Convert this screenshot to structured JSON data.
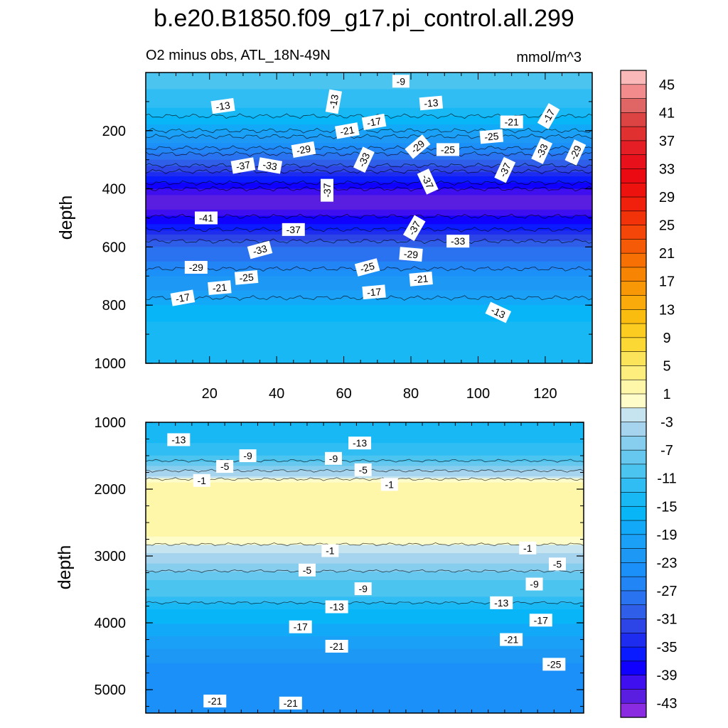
{
  "title": "b.e20.B1850.f09_g17.pi_control.all.299",
  "subtitle_left": "O2 minus obs, ATL_18N-49N",
  "subtitle_right": "mmol/m^3",
  "colorbar": {
    "levels": [
      -45,
      -43,
      -41,
      -39,
      -37,
      -35,
      -33,
      -31,
      -29,
      -27,
      -25,
      -23,
      -21,
      -19,
      -17,
      -15,
      -13,
      -11,
      -9,
      -7,
      -5,
      -3,
      -1,
      1,
      3,
      5,
      7,
      9,
      11,
      13,
      15,
      17,
      19,
      21,
      23,
      25,
      27,
      29,
      31,
      33,
      35,
      37,
      39,
      41,
      43,
      45
    ],
    "colors": [
      "#8a2be2",
      "#5a1ee0",
      "#3f0ff0",
      "#1000ff",
      "#0a1cff",
      "#1e2cf0",
      "#2d45e6",
      "#2f5fe8",
      "#2a73f0",
      "#2285f5",
      "#1a90f8",
      "#1e98f5",
      "#1aa0f7",
      "#12aaf8",
      "#08b6f8",
      "#18b8f5",
      "#30bdf4",
      "#4cc4f0",
      "#66c8ee",
      "#86cdee",
      "#a6d4ee",
      "#c6e4f0",
      "#fefcc8",
      "#fef6a8",
      "#fdee7e",
      "#fce45a",
      "#fcd834",
      "#fccc20",
      "#fbbc10",
      "#faaa0a",
      "#f99806",
      "#f88404",
      "#f77004",
      "#f55a06",
      "#f44608",
      "#f2330a",
      "#f0200c",
      "#ee120e",
      "#ec0a12",
      "#e8101a",
      "#e41e24",
      "#e03030",
      "#dc4444",
      "#e06666",
      "#f28c8c",
      "#fab8b8"
    ],
    "tick_labels": [
      "45",
      "41",
      "37",
      "33",
      "29",
      "25",
      "21",
      "17",
      "13",
      "9",
      "5",
      "1",
      "-3",
      "-7",
      "-11",
      "-15",
      "-19",
      "-23",
      "-27",
      "-31",
      "-35",
      "-39",
      "-43"
    ]
  },
  "chart_data": [
    {
      "type": "heatmap",
      "panel": "upper",
      "description": "filled contours of O2 minus obs (mmol/m^3) vs x index and depth",
      "xlabel": "",
      "ylabel": "depth",
      "xlim": [
        1,
        134
      ],
      "ylim": [
        1000,
        0
      ],
      "x_ticks": [
        20,
        40,
        60,
        80,
        100,
        120
      ],
      "y_ticks": [
        200,
        400,
        600,
        800,
        1000
      ],
      "band_profile": {
        "depth": [
          10,
          60,
          120,
          180,
          240,
          300,
          360,
          420,
          470,
          520,
          560,
          600,
          650,
          700,
          750,
          800,
          860,
          920,
          1000
        ],
        "value": [
          -9,
          -11,
          -13,
          -17,
          -23,
          -29,
          -35,
          -41,
          -41,
          -37,
          -33,
          -29,
          -27,
          -23,
          -21,
          -17,
          -15,
          -13,
          -13
        ]
      },
      "contour_labels": [
        {
          "text": "-9",
          "x": 77,
          "depth": 30,
          "angle": 0
        },
        {
          "text": "-13",
          "x": 24,
          "depth": 115,
          "angle": -8
        },
        {
          "text": "-13",
          "x": 57,
          "depth": 100,
          "angle": -80
        },
        {
          "text": "-13",
          "x": 86,
          "depth": 105,
          "angle": -5
        },
        {
          "text": "-17",
          "x": 69,
          "depth": 170,
          "angle": -10
        },
        {
          "text": "-21",
          "x": 61,
          "depth": 200,
          "angle": -10
        },
        {
          "text": "-21",
          "x": 110,
          "depth": 170,
          "angle": 0
        },
        {
          "text": "-17",
          "x": 121,
          "depth": 150,
          "angle": -60
        },
        {
          "text": "-25",
          "x": 104,
          "depth": 220,
          "angle": -5
        },
        {
          "text": "-29",
          "x": 48,
          "depth": 265,
          "angle": -10
        },
        {
          "text": "-29",
          "x": 82,
          "depth": 255,
          "angle": -40
        },
        {
          "text": "-25",
          "x": 91,
          "depth": 265,
          "angle": 0
        },
        {
          "text": "-33",
          "x": 119,
          "depth": 270,
          "angle": -65
        },
        {
          "text": "-29",
          "x": 129,
          "depth": 275,
          "angle": -65
        },
        {
          "text": "-37",
          "x": 30,
          "depth": 320,
          "angle": -10
        },
        {
          "text": "-33",
          "x": 38,
          "depth": 320,
          "angle": 10
        },
        {
          "text": "-33",
          "x": 66,
          "depth": 300,
          "angle": -65
        },
        {
          "text": "-37",
          "x": 108,
          "depth": 335,
          "angle": -65
        },
        {
          "text": "-37",
          "x": 55,
          "depth": 405,
          "angle": -90
        },
        {
          "text": "-37",
          "x": 85,
          "depth": 375,
          "angle": 65
        },
        {
          "text": "-41",
          "x": 19,
          "depth": 500,
          "angle": 0
        },
        {
          "text": "-37",
          "x": 45,
          "depth": 540,
          "angle": 0
        },
        {
          "text": "-37",
          "x": 81,
          "depth": 535,
          "angle": -60
        },
        {
          "text": "-33",
          "x": 35,
          "depth": 610,
          "angle": -15
        },
        {
          "text": "-33",
          "x": 94,
          "depth": 580,
          "angle": 0
        },
        {
          "text": "-29",
          "x": 80,
          "depth": 625,
          "angle": 5
        },
        {
          "text": "-29",
          "x": 16,
          "depth": 670,
          "angle": 0
        },
        {
          "text": "-25",
          "x": 67,
          "depth": 670,
          "angle": -15
        },
        {
          "text": "-25",
          "x": 31,
          "depth": 705,
          "angle": -5
        },
        {
          "text": "-21",
          "x": 23,
          "depth": 740,
          "angle": -5
        },
        {
          "text": "-21",
          "x": 83,
          "depth": 710,
          "angle": -5
        },
        {
          "text": "-17",
          "x": 12,
          "depth": 775,
          "angle": -10
        },
        {
          "text": "-17",
          "x": 69,
          "depth": 755,
          "angle": -5
        },
        {
          "text": "-13",
          "x": 106,
          "depth": 825,
          "angle": 25
        }
      ]
    },
    {
      "type": "heatmap",
      "panel": "lower",
      "description": "filled contours of O2 minus obs (mmol/m^3) vs x index and depth",
      "xlabel": "",
      "ylabel": "depth",
      "xlim": [
        1,
        134
      ],
      "ylim": [
        5350,
        1000
      ],
      "y_ticks": [
        1000,
        2000,
        3000,
        4000,
        5000
      ],
      "band_profile": {
        "depth": [
          1000,
          1300,
          1500,
          1650,
          1800,
          1900,
          2000,
          2300,
          2700,
          2950,
          3100,
          3350,
          3600,
          3800,
          4000,
          4200,
          4400,
          4600,
          5350
        ],
        "value": [
          -15,
          -13,
          -11,
          -7,
          -3,
          1,
          3,
          3,
          1,
          -3,
          -5,
          -9,
          -11,
          -15,
          -17,
          -19,
          -21,
          -23,
          -23
        ]
      },
      "contour_labels": [
        {
          "text": "-13",
          "x": 11,
          "depth": 1260,
          "angle": 0
        },
        {
          "text": "-13",
          "x": 66,
          "depth": 1310,
          "angle": 0
        },
        {
          "text": "-9",
          "x": 32,
          "depth": 1500,
          "angle": 0
        },
        {
          "text": "-9",
          "x": 58,
          "depth": 1540,
          "angle": 0
        },
        {
          "text": "-5",
          "x": 25,
          "depth": 1660,
          "angle": 0
        },
        {
          "text": "-5",
          "x": 67,
          "depth": 1710,
          "angle": 0
        },
        {
          "text": "-1",
          "x": 18,
          "depth": 1870,
          "angle": 0
        },
        {
          "text": "-1",
          "x": 75,
          "depth": 1930,
          "angle": 0
        },
        {
          "text": "-1",
          "x": 57,
          "depth": 2920,
          "angle": 0
        },
        {
          "text": "-1",
          "x": 117,
          "depth": 2880,
          "angle": 0
        },
        {
          "text": "-5",
          "x": 50,
          "depth": 3210,
          "angle": 0
        },
        {
          "text": "-5",
          "x": 126,
          "depth": 3120,
          "angle": 0
        },
        {
          "text": "-9",
          "x": 67,
          "depth": 3490,
          "angle": 0
        },
        {
          "text": "-9",
          "x": 119,
          "depth": 3420,
          "angle": 0
        },
        {
          "text": "-13",
          "x": 59,
          "depth": 3760,
          "angle": 0
        },
        {
          "text": "-13",
          "x": 109,
          "depth": 3700,
          "angle": 0
        },
        {
          "text": "-17",
          "x": 48,
          "depth": 4060,
          "angle": 0
        },
        {
          "text": "-17",
          "x": 121,
          "depth": 3960,
          "angle": 0
        },
        {
          "text": "-21",
          "x": 59,
          "depth": 4350,
          "angle": 0
        },
        {
          "text": "-21",
          "x": 112,
          "depth": 4250,
          "angle": 0
        },
        {
          "text": "-25",
          "x": 125,
          "depth": 4620,
          "angle": 0
        },
        {
          "text": "-21",
          "x": 22,
          "depth": 5170,
          "angle": 0
        },
        {
          "text": "-21",
          "x": 45,
          "depth": 5200,
          "angle": 0
        }
      ]
    }
  ]
}
